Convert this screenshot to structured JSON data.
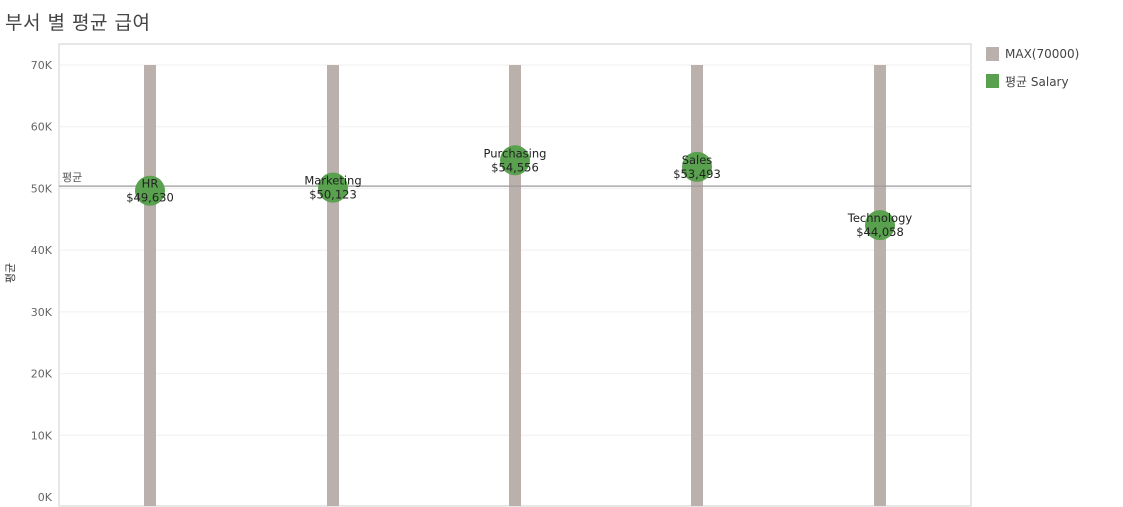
{
  "title": "부서 별 평균 급여",
  "legend": [
    {
      "label": "MAX(70000)",
      "color": "#bab0ac"
    },
    {
      "label": "평균 Salary",
      "color": "#59a14f"
    }
  ],
  "chart_data": {
    "type": "scatter",
    "title": "부서 별 평균 급여",
    "ylabel": "평균",
    "ylim": [
      0,
      70000
    ],
    "yticks": [
      "0K",
      "10K",
      "20K",
      "30K",
      "40K",
      "50K",
      "60K",
      "70K"
    ],
    "ytick_values": [
      0,
      10000,
      20000,
      30000,
      40000,
      50000,
      60000,
      70000
    ],
    "categories": [
      "HR",
      "Marketing",
      "Purchasing",
      "Sales",
      "Technology"
    ],
    "series": [
      {
        "name": "MAX(70000)",
        "type": "bar",
        "color": "#bab0ac",
        "values": [
          70000,
          70000,
          70000,
          70000,
          70000
        ]
      },
      {
        "name": "평균 Salary",
        "type": "scatter",
        "color": "#59a14f",
        "values": [
          49630,
          50123,
          54556,
          53493,
          44058
        ]
      }
    ],
    "data_labels": [
      "$49,630",
      "$50,123",
      "$54,556",
      "$53,493",
      "$44,058"
    ],
    "reference_line": {
      "label": "평균",
      "value": 50372
    },
    "grid": true
  }
}
